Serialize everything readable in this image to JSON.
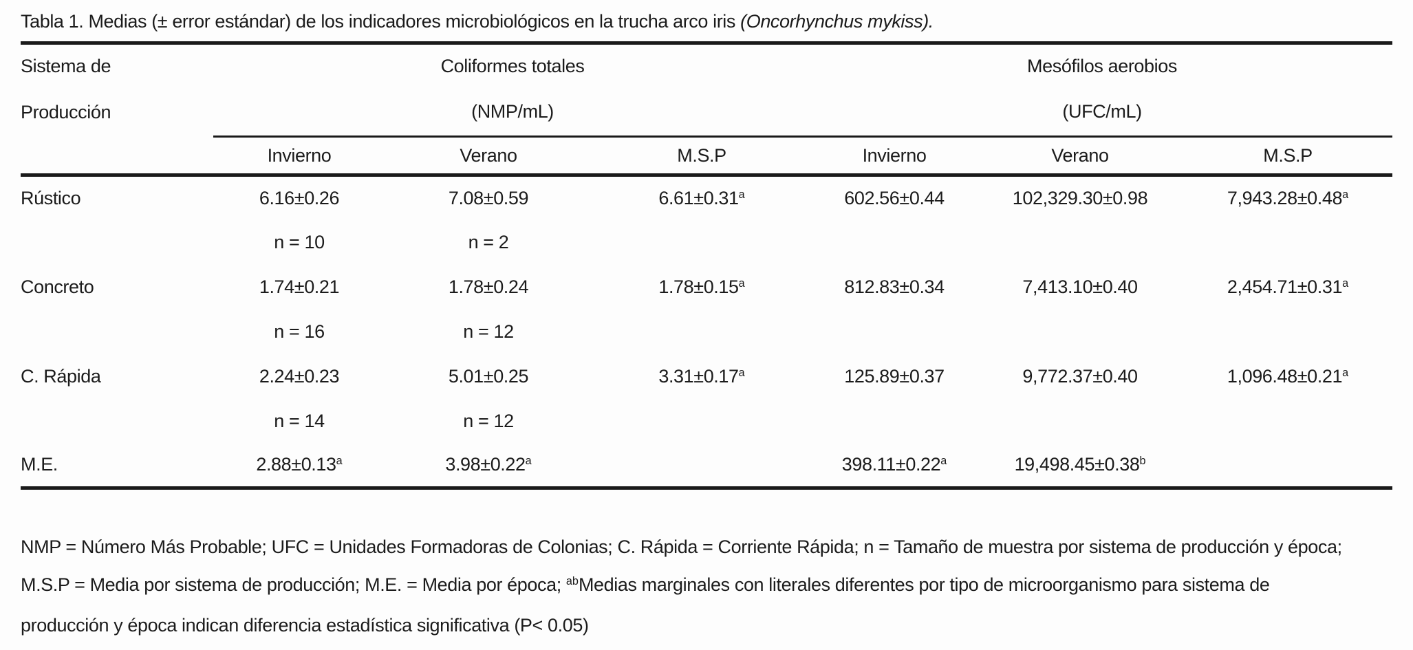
{
  "title": {
    "segments": [
      {
        "text": "Tabla 1. Medias (± error estándar) de los indicadores microbiológicos en la trucha arco iris "
      },
      {
        "text": "(Oncorhynchus mykiss).",
        "italic": true
      }
    ]
  },
  "table": {
    "stub_header_line1": "Sistema de",
    "stub_header_line2": "Producción",
    "groups": [
      {
        "name": "Coliformes totales",
        "unit": "(NMP/mL)"
      },
      {
        "name": "Mesófilos aerobios",
        "unit": "(UFC/mL)"
      }
    ],
    "season_headers": [
      "Invierno",
      "Verano",
      "M.S.P",
      "Invierno",
      "Verano",
      "M.S.P"
    ],
    "rows": [
      {
        "label": "Rústico",
        "type": "value",
        "cells": [
          "6.16±0.26",
          "7.08±0.59",
          "6.61±0.31^a",
          "602.56±0.44",
          "102,329.30±0.98",
          "7,943.28±0.48^a"
        ]
      },
      {
        "label": "",
        "type": "n",
        "cells": [
          "n = 10",
          "n = 2",
          "",
          "",
          "",
          ""
        ]
      },
      {
        "label": "Concreto",
        "type": "value",
        "cells": [
          "1.74±0.21",
          "1.78±0.24",
          "1.78±0.15^a",
          "812.83±0.34",
          "7,413.10±0.40",
          "2,454.71±0.31^a"
        ]
      },
      {
        "label": "",
        "type": "n",
        "cells": [
          "n = 16",
          "n = 12",
          "",
          "",
          "",
          ""
        ]
      },
      {
        "label": "C. Rápida",
        "type": "value",
        "cells": [
          "2.24±0.23",
          "5.01±0.25",
          "3.31±0.17^a",
          "125.89±0.37",
          "9,772.37±0.40",
          "1,096.48±0.21^a"
        ]
      },
      {
        "label": "",
        "type": "n",
        "cells": [
          "n = 14",
          "n = 12",
          "",
          "",
          "",
          ""
        ]
      },
      {
        "label": "M.E.",
        "type": "value",
        "cells": [
          "2.88±0.13^a",
          "3.98±0.22^a",
          "",
          "398.11±0.22^a",
          "19,498.45±0.38^b",
          ""
        ]
      }
    ]
  },
  "footnote": {
    "lines": [
      [
        {
          "text": "NMP = Número Más Probable; UFC = Unidades Formadoras de Colonias; C. Rápida = Corriente Rápida; n = Tamaño de muestra por sistema de producción y época;"
        }
      ],
      [
        {
          "text": "M.S.P = Media por sistema de producción; M.E. = Media por época; "
        },
        {
          "text": "ab",
          "sup": true
        },
        {
          "text": "Medias marginales con literales diferentes por tipo de microorganismo para sistema de"
        }
      ],
      [
        {
          "text": "producción y época indican diferencia estadística significativa (P< 0.05)"
        }
      ]
    ]
  },
  "colors": {
    "background": "#fdfdfd",
    "text": "#1b1b1b",
    "rule": "#1a1a1a"
  }
}
